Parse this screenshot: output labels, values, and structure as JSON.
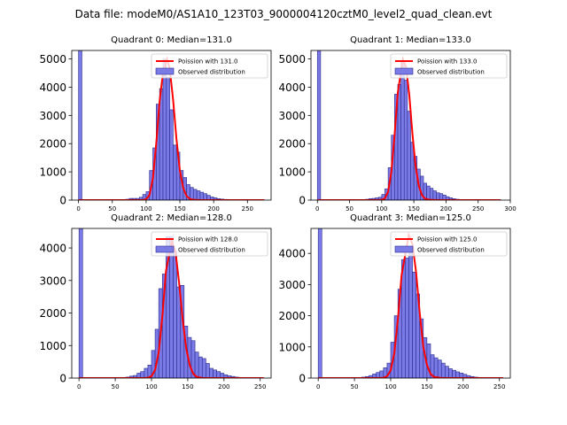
{
  "figure": {
    "suptitle": "Data file: modeM0/AS1A10_123T03_9000004120cztM0_level2_quad_clean.evt"
  },
  "colors": {
    "bar_fill": "#7b7be8",
    "bar_edge": "#2a2a8a",
    "fit_line": "#ff0000",
    "axes": "#000000"
  },
  "chart_data": [
    {
      "type": "bar",
      "title": "Quadrant 0: Median=131.0",
      "xlim": [
        -10,
        285
      ],
      "ylim": [
        0,
        5300
      ],
      "xticks": [
        0,
        50,
        100,
        150,
        200,
        250
      ],
      "yticks": [
        0,
        1000,
        2000,
        3000,
        4000,
        5000
      ],
      "legend": {
        "placement": "top-right",
        "entries": [
          "Poission with 131.0",
          "Observed distribution"
        ]
      },
      "bin_width": 5,
      "bins_x": [
        0,
        45,
        50,
        60,
        65,
        70,
        75,
        80,
        85,
        90,
        95,
        100,
        105,
        110,
        115,
        120,
        125,
        130,
        135,
        140,
        145,
        150,
        155,
        160,
        165,
        170,
        175,
        180,
        185,
        190,
        195,
        200,
        205,
        210,
        215,
        220,
        225,
        230,
        235,
        240,
        245,
        250,
        255,
        260,
        265,
        270
      ],
      "bins_y": [
        5300,
        10,
        10,
        10,
        20,
        30,
        60,
        60,
        60,
        100,
        200,
        300,
        1050,
        1850,
        3400,
        3950,
        5000,
        4350,
        3200,
        1950,
        1700,
        1050,
        800,
        550,
        450,
        380,
        330,
        280,
        230,
        170,
        110,
        80,
        50,
        35,
        25,
        15,
        10,
        10,
        5,
        5,
        5,
        5,
        5,
        5,
        5,
        5
      ],
      "fit_x": [
        0,
        95,
        100,
        105,
        110,
        115,
        120,
        125,
        131,
        135,
        140,
        145,
        150,
        155,
        160,
        165,
        170,
        180,
        200,
        275
      ],
      "fit_y": [
        0,
        0,
        30,
        180,
        750,
        2000,
        3500,
        4500,
        5000,
        4650,
        3550,
        2150,
        1050,
        420,
        140,
        40,
        10,
        0,
        0,
        0
      ]
    },
    {
      "type": "bar",
      "title": "Quadrant 1: Median=133.0",
      "xlim": [
        -10,
        300
      ],
      "ylim": [
        0,
        5300
      ],
      "xticks": [
        0,
        50,
        100,
        150,
        200,
        250,
        300
      ],
      "yticks": [
        0,
        1000,
        2000,
        3000,
        4000,
        5000
      ],
      "legend": {
        "placement": "top-right",
        "entries": [
          "Poission with 133.0",
          "Observed distribution"
        ]
      },
      "bin_width": 5,
      "bins_x": [
        0,
        50,
        60,
        65,
        70,
        75,
        80,
        85,
        90,
        95,
        100,
        105,
        110,
        115,
        120,
        125,
        130,
        135,
        140,
        145,
        150,
        155,
        160,
        165,
        170,
        175,
        180,
        185,
        190,
        195,
        200,
        205,
        210,
        215,
        220,
        225,
        230,
        235,
        240,
        245,
        250,
        260,
        270,
        280
      ],
      "bins_y": [
        5300,
        5,
        10,
        10,
        20,
        30,
        50,
        60,
        80,
        100,
        200,
        400,
        1150,
        2300,
        3750,
        4100,
        4950,
        4250,
        3150,
        2050,
        1550,
        1100,
        850,
        600,
        500,
        420,
        330,
        260,
        230,
        180,
        120,
        80,
        50,
        30,
        20,
        15,
        10,
        10,
        5,
        5,
        5,
        5,
        5,
        5
      ],
      "fit_x": [
        0,
        95,
        100,
        105,
        110,
        115,
        120,
        125,
        133,
        138,
        143,
        148,
        153,
        158,
        163,
        168,
        175,
        185,
        200,
        285
      ],
      "fit_y": [
        0,
        0,
        10,
        60,
        300,
        1000,
        2300,
        3800,
        5000,
        4700,
        3700,
        2300,
        1150,
        480,
        160,
        45,
        10,
        0,
        0,
        0
      ]
    },
    {
      "type": "bar",
      "title": "Quadrant 2: Median=128.0",
      "xlim": [
        -10,
        265
      ],
      "ylim": [
        0,
        4600
      ],
      "xticks": [
        0,
        50,
        100,
        150,
        200,
        250
      ],
      "yticks": [
        0,
        1000,
        2000,
        3000,
        4000
      ],
      "legend": {
        "placement": "top-right",
        "entries": [
          "Poission with 128.0",
          "Observed distribution"
        ]
      },
      "bin_width": 5,
      "bins_x": [
        0,
        45,
        50,
        60,
        65,
        70,
        75,
        80,
        85,
        90,
        95,
        100,
        105,
        110,
        115,
        120,
        125,
        130,
        135,
        140,
        145,
        150,
        155,
        160,
        165,
        170,
        175,
        180,
        185,
        190,
        195,
        200,
        205,
        210,
        215,
        220,
        225,
        230,
        235,
        240,
        245,
        250
      ],
      "bins_y": [
        4600,
        5,
        10,
        20,
        30,
        60,
        80,
        150,
        200,
        300,
        400,
        850,
        1500,
        2750,
        3200,
        4350,
        4350,
        3900,
        2800,
        2850,
        1600,
        1250,
        1150,
        800,
        650,
        600,
        450,
        300,
        250,
        200,
        150,
        100,
        70,
        50,
        30,
        20,
        15,
        10,
        5,
        5,
        5,
        5
      ],
      "fit_x": [
        0,
        90,
        95,
        100,
        105,
        110,
        115,
        120,
        128,
        133,
        138,
        143,
        148,
        153,
        158,
        163,
        170,
        180,
        200,
        255
      ],
      "fit_y": [
        0,
        0,
        10,
        60,
        250,
        800,
        1900,
        3300,
        4200,
        3900,
        2950,
        1800,
        900,
        380,
        120,
        30,
        5,
        0,
        0,
        0
      ]
    },
    {
      "type": "bar",
      "title": "Quadrant 3: Median=125.0",
      "xlim": [
        -10,
        265
      ],
      "ylim": [
        0,
        4800
      ],
      "xticks": [
        0,
        50,
        100,
        150,
        200,
        250
      ],
      "yticks": [
        0,
        1000,
        2000,
        3000,
        4000
      ],
      "legend": {
        "placement": "top-right",
        "entries": [
          "Poission with 125.0",
          "Observed distribution"
        ]
      },
      "bin_width": 5,
      "bins_x": [
        0,
        45,
        50,
        55,
        60,
        65,
        70,
        75,
        80,
        85,
        90,
        95,
        100,
        105,
        110,
        115,
        120,
        125,
        130,
        135,
        140,
        145,
        150,
        155,
        160,
        165,
        170,
        175,
        180,
        185,
        190,
        195,
        200,
        205,
        210,
        215,
        220,
        225,
        230,
        235,
        240,
        245,
        250
      ],
      "bins_y": [
        4800,
        5,
        10,
        20,
        30,
        50,
        80,
        130,
        180,
        230,
        330,
        480,
        1150,
        2000,
        2850,
        3800,
        3850,
        4200,
        3400,
        2700,
        1900,
        1300,
        1100,
        750,
        650,
        580,
        480,
        380,
        300,
        250,
        200,
        160,
        120,
        80,
        50,
        30,
        20,
        15,
        10,
        5,
        5,
        5,
        5
      ],
      "fit_x": [
        0,
        85,
        90,
        95,
        100,
        105,
        110,
        115,
        125,
        130,
        135,
        140,
        145,
        150,
        155,
        160,
        170,
        180,
        200,
        255
      ],
      "fit_y": [
        0,
        0,
        10,
        60,
        250,
        800,
        1900,
        3300,
        4600,
        4300,
        3400,
        2100,
        1000,
        420,
        130,
        35,
        5,
        0,
        0,
        0
      ]
    }
  ]
}
